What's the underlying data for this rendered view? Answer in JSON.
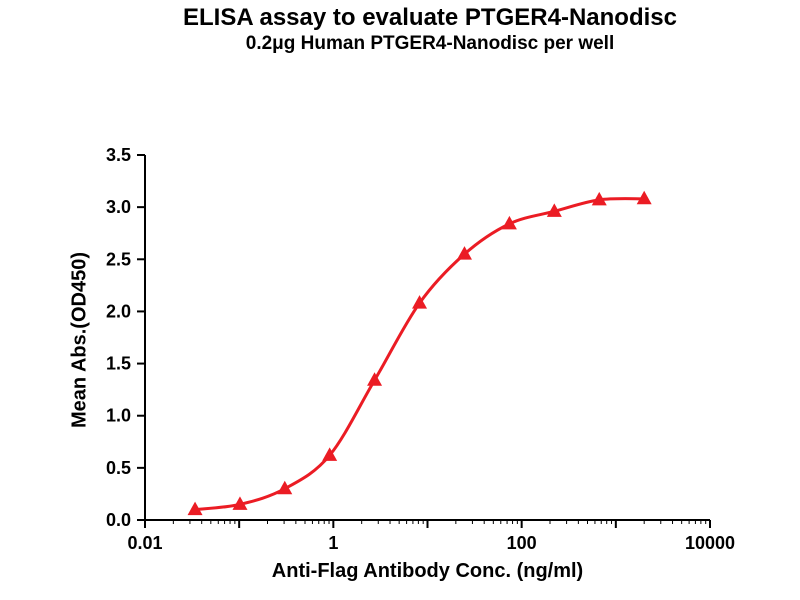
{
  "chart_data": {
    "type": "scatter",
    "title": "ELISA assay to evaluate PTGER4-Nanodisc",
    "subtitle": "0.2μg Human PTGER4-Nanodisc per well",
    "xlabel": "Anti-Flag Antibody Conc. (ng/ml)",
    "ylabel": "Mean Abs.(OD450)",
    "x_scale": "log",
    "xlim": [
      0.01,
      10000
    ],
    "ylim": [
      0.0,
      3.5
    ],
    "x_ticks_labeled": [
      0.01,
      1,
      100,
      10000
    ],
    "x_tick_labels": [
      "0.01",
      "1",
      "100",
      "10000"
    ],
    "y_ticks": [
      0.0,
      0.5,
      1.0,
      1.5,
      2.0,
      2.5,
      3.0,
      3.5
    ],
    "y_tick_labels": [
      "0.0",
      "0.5",
      "1.0",
      "1.5",
      "2.0",
      "2.5",
      "3.0",
      "3.5"
    ],
    "grid": false,
    "legend": "none",
    "curve_style": "sigmoid 4PL fit through points",
    "series": [
      {
        "name": "Human PTGER4-Nanodisc (0.2 ug per well)",
        "marker": "triangle",
        "color": "#eb1c24",
        "x": [
          0.034,
          0.102,
          0.305,
          0.914,
          2.74,
          8.23,
          24.7,
          74.1,
          222.2,
          666.7,
          2000
        ],
        "y": [
          0.1,
          0.15,
          0.3,
          0.62,
          1.34,
          2.08,
          2.55,
          2.84,
          2.96,
          3.07,
          3.08
        ]
      }
    ]
  }
}
